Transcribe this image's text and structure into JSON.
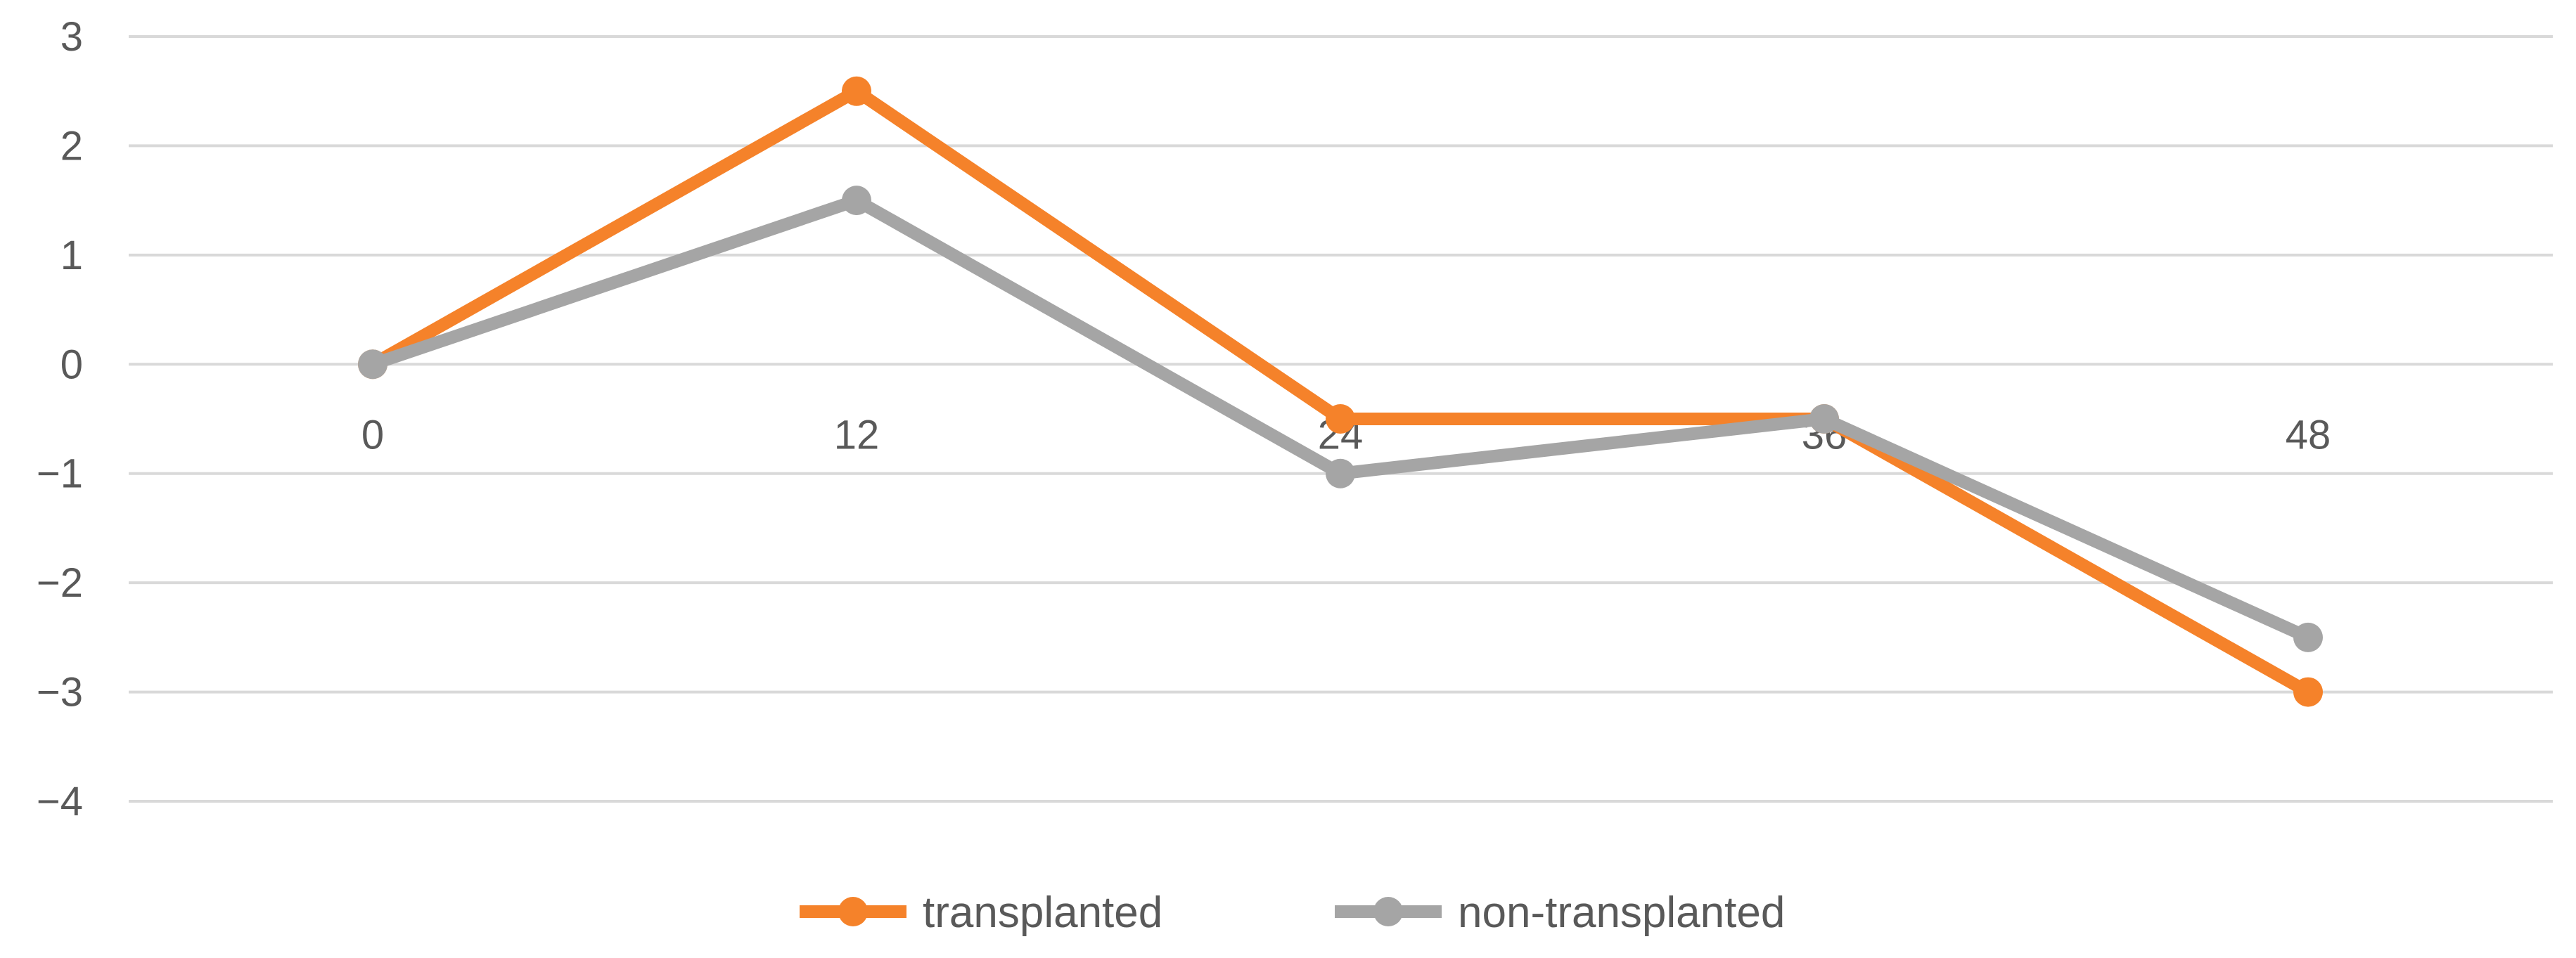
{
  "chart_data": {
    "type": "line",
    "x": [
      "0",
      "12",
      "24",
      "36",
      "48"
    ],
    "ylim": [
      -4,
      3
    ],
    "yticks": [
      3,
      2,
      1,
      0,
      -1,
      -2,
      -3,
      -4
    ],
    "ytick_labels": [
      "3",
      "2",
      "1",
      "0",
      "−1",
      "−2",
      "−3",
      "−4"
    ],
    "grid": true,
    "legend": "bottom",
    "series": [
      {
        "name": "transplanted",
        "color": "#f5822a",
        "values": [
          0,
          2.5,
          -0.5,
          -0.5,
          -3
        ]
      },
      {
        "name": "non-transplanted",
        "color": "#a5a5a5",
        "values": [
          0,
          1.5,
          -1,
          -0.5,
          -2.5
        ]
      }
    ]
  }
}
